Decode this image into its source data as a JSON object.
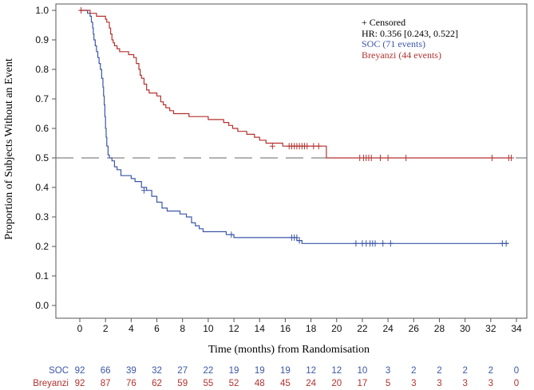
{
  "chart_data": {
    "type": "line",
    "xlabel": "Time (months) from Randomisation",
    "ylabel": "Proportion of Subjects Without an Event",
    "xlim": [
      -1.8,
      34.5
    ],
    "ylim": [
      -0.04,
      1.02
    ],
    "xticks": [
      0,
      2,
      4,
      6,
      8,
      10,
      12,
      14,
      16,
      18,
      20,
      22,
      24,
      26,
      28,
      30,
      32,
      34
    ],
    "yticks": [
      "0.0",
      "0.1",
      "0.2",
      "0.3",
      "0.4",
      "0.5",
      "0.6",
      "0.7",
      "0.8",
      "0.9",
      "1.0"
    ],
    "reference_line": 0.5,
    "legend": {
      "censored": "+ Censored",
      "hr": "HR: 0.356 [0.243, 0.522]",
      "soc": "SOC (71 events)",
      "breyanzi": "Breyanzi (44 events)"
    },
    "series": [
      {
        "name": "SOC",
        "color": "#3b57a8",
        "steps": [
          [
            0,
            1.0
          ],
          [
            0.6,
            0.99
          ],
          [
            0.8,
            0.98
          ],
          [
            0.9,
            0.96
          ],
          [
            1.0,
            0.94
          ],
          [
            1.05,
            0.92
          ],
          [
            1.1,
            0.9
          ],
          [
            1.2,
            0.88
          ],
          [
            1.3,
            0.86
          ],
          [
            1.4,
            0.84
          ],
          [
            1.5,
            0.82
          ],
          [
            1.6,
            0.8
          ],
          [
            1.7,
            0.77
          ],
          [
            1.8,
            0.74
          ],
          [
            1.85,
            0.71
          ],
          [
            1.9,
            0.68
          ],
          [
            1.95,
            0.64
          ],
          [
            2.0,
            0.6
          ],
          [
            2.05,
            0.57
          ],
          [
            2.1,
            0.54
          ],
          [
            2.2,
            0.51
          ],
          [
            2.3,
            0.5
          ],
          [
            2.5,
            0.49
          ],
          [
            2.7,
            0.47
          ],
          [
            2.9,
            0.46
          ],
          [
            3.2,
            0.44
          ],
          [
            4.0,
            0.43
          ],
          [
            4.3,
            0.42
          ],
          [
            4.8,
            0.4
          ],
          [
            5.2,
            0.39
          ],
          [
            5.6,
            0.37
          ],
          [
            6.0,
            0.35
          ],
          [
            6.4,
            0.33
          ],
          [
            6.8,
            0.32
          ],
          [
            7.8,
            0.31
          ],
          [
            8.3,
            0.3
          ],
          [
            8.7,
            0.28
          ],
          [
            9.0,
            0.27
          ],
          [
            9.3,
            0.26
          ],
          [
            9.6,
            0.25
          ],
          [
            11.4,
            0.24
          ],
          [
            12.0,
            0.23
          ],
          [
            16.9,
            0.22
          ],
          [
            17.3,
            0.21
          ],
          [
            33.4,
            0.21
          ]
        ],
        "censored": [
          [
            5.0,
            0.39
          ],
          [
            11.8,
            0.24
          ],
          [
            16.5,
            0.23
          ],
          [
            16.7,
            0.23
          ],
          [
            16.9,
            0.23
          ],
          [
            17.1,
            0.22
          ],
          [
            21.5,
            0.21
          ],
          [
            22.0,
            0.21
          ],
          [
            22.3,
            0.21
          ],
          [
            22.6,
            0.21
          ],
          [
            22.8,
            0.21
          ],
          [
            23.0,
            0.21
          ],
          [
            23.6,
            0.21
          ],
          [
            24.2,
            0.21
          ],
          [
            32.9,
            0.21
          ],
          [
            33.2,
            0.21
          ]
        ]
      },
      {
        "name": "Breyanzi",
        "color": "#b3322f",
        "steps": [
          [
            0,
            1.0
          ],
          [
            0.8,
            0.99
          ],
          [
            1.3,
            0.98
          ],
          [
            2.0,
            0.97
          ],
          [
            2.1,
            0.96
          ],
          [
            2.3,
            0.94
          ],
          [
            2.4,
            0.92
          ],
          [
            2.5,
            0.9
          ],
          [
            2.6,
            0.89
          ],
          [
            2.7,
            0.88
          ],
          [
            2.9,
            0.87
          ],
          [
            3.1,
            0.86
          ],
          [
            3.8,
            0.85
          ],
          [
            4.2,
            0.84
          ],
          [
            4.4,
            0.82
          ],
          [
            4.6,
            0.8
          ],
          [
            4.7,
            0.78
          ],
          [
            4.8,
            0.77
          ],
          [
            5.0,
            0.75
          ],
          [
            5.2,
            0.73
          ],
          [
            5.4,
            0.72
          ],
          [
            6.0,
            0.71
          ],
          [
            6.3,
            0.69
          ],
          [
            6.5,
            0.68
          ],
          [
            6.7,
            0.67
          ],
          [
            7.0,
            0.66
          ],
          [
            7.3,
            0.65
          ],
          [
            8.5,
            0.64
          ],
          [
            8.9,
            0.64
          ],
          [
            9.5,
            0.64
          ],
          [
            10.0,
            0.63
          ],
          [
            11.2,
            0.62
          ],
          [
            11.6,
            0.61
          ],
          [
            11.9,
            0.6
          ],
          [
            12.3,
            0.59
          ],
          [
            12.5,
            0.59
          ],
          [
            13.0,
            0.58
          ],
          [
            13.6,
            0.57
          ],
          [
            14.0,
            0.56
          ],
          [
            14.5,
            0.55
          ],
          [
            15.8,
            0.54
          ],
          [
            19.2,
            0.5
          ],
          [
            33.6,
            0.5
          ]
        ],
        "censored": [
          [
            0.1,
            1.0
          ],
          [
            15.0,
            0.54
          ],
          [
            16.3,
            0.54
          ],
          [
            16.5,
            0.54
          ],
          [
            16.7,
            0.54
          ],
          [
            16.9,
            0.54
          ],
          [
            17.1,
            0.54
          ],
          [
            17.3,
            0.54
          ],
          [
            17.5,
            0.54
          ],
          [
            17.7,
            0.54
          ],
          [
            18.2,
            0.54
          ],
          [
            18.6,
            0.54
          ],
          [
            21.8,
            0.5
          ],
          [
            22.1,
            0.5
          ],
          [
            22.3,
            0.5
          ],
          [
            22.5,
            0.5
          ],
          [
            22.7,
            0.5
          ],
          [
            23.4,
            0.5
          ],
          [
            24.0,
            0.5
          ],
          [
            25.4,
            0.5
          ],
          [
            32.1,
            0.5
          ],
          [
            33.4,
            0.5
          ],
          [
            33.6,
            0.5
          ]
        ]
      }
    ],
    "risk_table": {
      "times": [
        0,
        2,
        4,
        6,
        8,
        10,
        12,
        14,
        16,
        18,
        20,
        22,
        24,
        26,
        28,
        30,
        32,
        34
      ],
      "rows": [
        {
          "label": "SOC",
          "color": "#3b57a8",
          "values": [
            "92",
            "66",
            "39",
            "32",
            "27",
            "22",
            "19",
            "19",
            "19",
            "12",
            "12",
            "10",
            "3",
            "2",
            "2",
            "2",
            "2",
            "0"
          ]
        },
        {
          "label": "Breyanzi",
          "color": "#b3322f",
          "values": [
            "92",
            "87",
            "76",
            "62",
            "59",
            "55",
            "52",
            "48",
            "45",
            "24",
            "20",
            "17",
            "5",
            "3",
            "3",
            "3",
            "3",
            "0"
          ]
        }
      ]
    }
  }
}
